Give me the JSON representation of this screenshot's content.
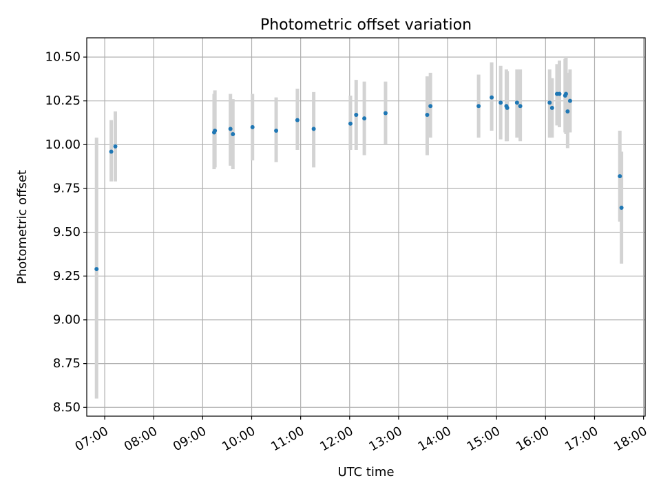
{
  "chart_data": {
    "type": "scatter",
    "title": "Photometric offset variation",
    "xlabel": "UTC time",
    "ylabel": "Photometric offset",
    "x_axis_type": "time",
    "xlim": [
      "06:38",
      "18:02"
    ],
    "ylim": [
      8.45,
      10.61
    ],
    "x_ticks": [
      "07:00",
      "08:00",
      "09:00",
      "10:00",
      "11:00",
      "12:00",
      "13:00",
      "14:00",
      "15:00",
      "16:00",
      "17:00",
      "18:00"
    ],
    "y_ticks": [
      "8.50",
      "8.75",
      "9.00",
      "9.25",
      "9.50",
      "9.75",
      "10.00",
      "10.25",
      "10.50"
    ],
    "grid": true,
    "marker_color": "#1f77b4",
    "errorbar_color": "#d3d3d3",
    "points": [
      {
        "x": "06:50",
        "y": 9.29,
        "err_low": 8.55,
        "err_high": 10.04
      },
      {
        "x": "07:08",
        "y": 9.96,
        "err_low": 9.79,
        "err_high": 10.14
      },
      {
        "x": "07:13",
        "y": 9.99,
        "err_low": 9.79,
        "err_high": 10.19
      },
      {
        "x": "09:14",
        "y": 10.07,
        "err_low": 9.86,
        "err_high": 10.29
      },
      {
        "x": "09:15",
        "y": 10.08,
        "err_low": 9.87,
        "err_high": 10.31
      },
      {
        "x": "09:34",
        "y": 10.09,
        "err_low": 9.88,
        "err_high": 10.29
      },
      {
        "x": "09:37",
        "y": 10.06,
        "err_low": 9.86,
        "err_high": 10.26
      },
      {
        "x": "10:01",
        "y": 10.1,
        "err_low": 9.91,
        "err_high": 10.29
      },
      {
        "x": "10:30",
        "y": 10.08,
        "err_low": 9.9,
        "err_high": 10.27
      },
      {
        "x": "10:56",
        "y": 10.14,
        "err_low": 9.97,
        "err_high": 10.32
      },
      {
        "x": "11:16",
        "y": 10.09,
        "err_low": 9.87,
        "err_high": 10.3
      },
      {
        "x": "12:01",
        "y": 10.12,
        "err_low": 9.97,
        "err_high": 10.28
      },
      {
        "x": "12:08",
        "y": 10.17,
        "err_low": 9.97,
        "err_high": 10.37
      },
      {
        "x": "12:18",
        "y": 10.15,
        "err_low": 9.94,
        "err_high": 10.36
      },
      {
        "x": "12:44",
        "y": 10.18,
        "err_low": 10.0,
        "err_high": 10.36
      },
      {
        "x": "13:35",
        "y": 10.17,
        "err_low": 9.94,
        "err_high": 10.39
      },
      {
        "x": "13:39",
        "y": 10.22,
        "err_low": 10.04,
        "err_high": 10.41
      },
      {
        "x": "14:38",
        "y": 10.22,
        "err_low": 10.04,
        "err_high": 10.4
      },
      {
        "x": "14:54",
        "y": 10.27,
        "err_low": 10.08,
        "err_high": 10.47
      },
      {
        "x": "15:05",
        "y": 10.24,
        "err_low": 10.03,
        "err_high": 10.45
      },
      {
        "x": "15:12",
        "y": 10.22,
        "err_low": 10.02,
        "err_high": 10.43
      },
      {
        "x": "15:13",
        "y": 10.21,
        "err_low": 10.02,
        "err_high": 10.42
      },
      {
        "x": "15:25",
        "y": 10.24,
        "err_low": 10.04,
        "err_high": 10.43
      },
      {
        "x": "15:29",
        "y": 10.22,
        "err_low": 10.02,
        "err_high": 10.43
      },
      {
        "x": "16:05",
        "y": 10.24,
        "err_low": 10.04,
        "err_high": 10.43
      },
      {
        "x": "16:08",
        "y": 10.21,
        "err_low": 10.04,
        "err_high": 10.38
      },
      {
        "x": "16:14",
        "y": 10.29,
        "err_low": 10.11,
        "err_high": 10.46
      },
      {
        "x": "16:17",
        "y": 10.29,
        "err_low": 10.1,
        "err_high": 10.48
      },
      {
        "x": "16:24",
        "y": 10.28,
        "err_low": 10.07,
        "err_high": 10.49
      },
      {
        "x": "16:25",
        "y": 10.29,
        "err_low": 10.06,
        "err_high": 10.5
      },
      {
        "x": "16:27",
        "y": 10.19,
        "err_low": 9.98,
        "err_high": 10.41
      },
      {
        "x": "16:30",
        "y": 10.25,
        "err_low": 10.07,
        "err_high": 10.43
      },
      {
        "x": "17:31",
        "y": 9.82,
        "err_low": 9.56,
        "err_high": 10.08
      },
      {
        "x": "17:33",
        "y": 9.64,
        "err_low": 9.32,
        "err_high": 9.96
      }
    ]
  }
}
